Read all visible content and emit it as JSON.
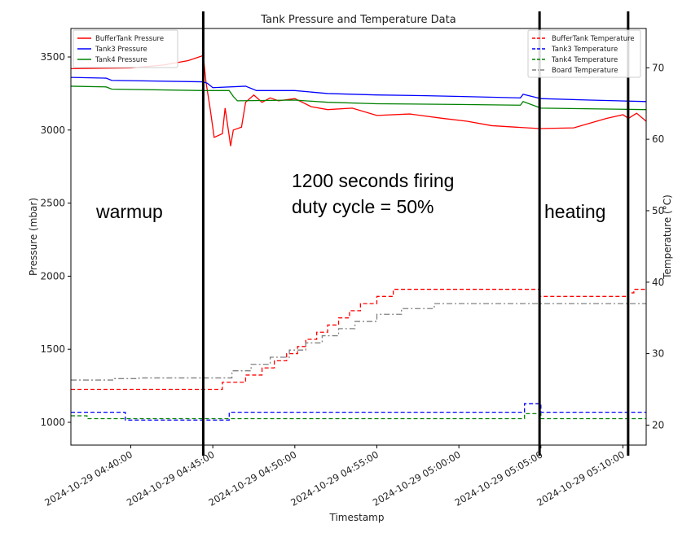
{
  "chart_data": {
    "type": "line",
    "title": "Tank Pressure and Temperature Data",
    "xlabel": "Timestamp",
    "ylabel_left": "Pressure (mbar)",
    "ylabel_right": "Temperature (°C)",
    "date": "2024-10-29",
    "xlim": [
      "04:36:21",
      "05:11:25"
    ],
    "ylim_left": [
      844,
      3695
    ],
    "ylim_right": [
      17.2,
      75.5
    ],
    "x_ticks": [
      "2024-10-29 04:40:00",
      "2024-10-29 04:45:00",
      "2024-10-29 04:50:00",
      "2024-10-29 04:55:00",
      "2024-10-29 05:00:00",
      "2024-10-29 05:05:00",
      "2024-10-29 05:10:00"
    ],
    "y_ticks_left": [
      1000,
      1500,
      2000,
      2500,
      3000,
      3500
    ],
    "y_ticks_right": [
      20,
      30,
      40,
      50,
      60,
      70
    ],
    "grid": false,
    "legend_left": "top-left",
    "legend_right": "top-right",
    "pressure_series": [
      {
        "name": "BufferTank Pressure",
        "color": "#ff0000",
        "style": "solid",
        "points": [
          [
            "04:36:21",
            3420
          ],
          [
            "04:40:00",
            3425
          ],
          [
            "04:42:00",
            3445
          ],
          [
            "04:43:30",
            3475
          ],
          [
            "04:44:25",
            3510
          ],
          [
            "04:44:35",
            3330
          ],
          [
            "04:44:50",
            3150
          ],
          [
            "04:45:05",
            2950
          ],
          [
            "04:45:35",
            2975
          ],
          [
            "04:45:45",
            3150
          ],
          [
            "04:46:00",
            2960
          ],
          [
            "04:46:05",
            2890
          ],
          [
            "04:46:15",
            3000
          ],
          [
            "04:46:45",
            3020
          ],
          [
            "04:47:00",
            3190
          ],
          [
            "04:47:30",
            3240
          ],
          [
            "04:48:00",
            3190
          ],
          [
            "04:48:30",
            3220
          ],
          [
            "04:49:00",
            3200
          ],
          [
            "04:50:00",
            3215
          ],
          [
            "04:51:00",
            3160
          ],
          [
            "04:52:00",
            3140
          ],
          [
            "04:53:30",
            3150
          ],
          [
            "04:55:00",
            3100
          ],
          [
            "04:57:00",
            3110
          ],
          [
            "04:59:00",
            3080
          ],
          [
            "05:00:30",
            3060
          ],
          [
            "05:02:00",
            3030
          ],
          [
            "05:04:55",
            3010
          ],
          [
            "05:07:00",
            3015
          ],
          [
            "05:09:00",
            3080
          ],
          [
            "05:10:00",
            3105
          ],
          [
            "05:10:20",
            3080
          ],
          [
            "05:10:50",
            3115
          ],
          [
            "05:11:25",
            3060
          ]
        ]
      },
      {
        "name": "Tank3 Pressure",
        "color": "#0000ff",
        "style": "solid",
        "points": [
          [
            "04:36:21",
            3360
          ],
          [
            "04:38:30",
            3355
          ],
          [
            "04:38:50",
            3340
          ],
          [
            "04:44:25",
            3330
          ],
          [
            "04:44:40",
            3320
          ],
          [
            "04:45:00",
            3290
          ],
          [
            "04:47:00",
            3300
          ],
          [
            "04:47:40",
            3270
          ],
          [
            "04:50:00",
            3270
          ],
          [
            "04:52:00",
            3250
          ],
          [
            "04:55:00",
            3240
          ],
          [
            "04:58:00",
            3235
          ],
          [
            "05:00:00",
            3230
          ],
          [
            "05:03:45",
            3220
          ],
          [
            "05:03:55",
            3245
          ],
          [
            "05:05:00",
            3215
          ],
          [
            "05:08:00",
            3205
          ],
          [
            "05:11:25",
            3195
          ]
        ]
      },
      {
        "name": "Tank4 Pressure",
        "color": "#008000",
        "style": "solid",
        "points": [
          [
            "04:36:21",
            3300
          ],
          [
            "04:38:30",
            3295
          ],
          [
            "04:38:50",
            3280
          ],
          [
            "04:44:25",
            3270
          ],
          [
            "04:46:00",
            3270
          ],
          [
            "04:46:15",
            3230
          ],
          [
            "04:46:30",
            3200
          ],
          [
            "04:50:00",
            3205
          ],
          [
            "04:52:00",
            3190
          ],
          [
            "04:55:00",
            3180
          ],
          [
            "05:00:00",
            3175
          ],
          [
            "05:03:45",
            3170
          ],
          [
            "05:03:55",
            3195
          ],
          [
            "05:05:00",
            3150
          ],
          [
            "05:11:25",
            3140
          ]
        ]
      }
    ],
    "temperature_series": [
      {
        "name": "BufferTank Temperature",
        "color": "#ff0000",
        "style": "dashed",
        "points": [
          [
            "04:36:21",
            25.0
          ],
          [
            "04:45:35",
            26.0
          ],
          [
            "04:47:00",
            27.0
          ],
          [
            "04:48:00",
            28.0
          ],
          [
            "04:48:45",
            29.0
          ],
          [
            "04:49:30",
            30.0
          ],
          [
            "04:50:10",
            31.0
          ],
          [
            "04:50:40",
            32.0
          ],
          [
            "04:51:20",
            33.0
          ],
          [
            "04:52:00",
            34.0
          ],
          [
            "04:52:40",
            35.0
          ],
          [
            "04:53:20",
            36.0
          ],
          [
            "04:54:00",
            37.0
          ],
          [
            "04:55:00",
            38.0
          ],
          [
            "04:56:00",
            39.0
          ],
          [
            "05:04:55",
            38.0
          ],
          [
            "05:10:19",
            38.5
          ],
          [
            "05:10:40",
            39.0
          ],
          [
            "05:11:25",
            39.0
          ]
        ]
      },
      {
        "name": "Tank3 Temperature",
        "color": "#0000ff",
        "style": "dashed",
        "points": [
          [
            "04:36:21",
            21.8
          ],
          [
            "04:39:40",
            20.7
          ],
          [
            "04:46:00",
            21.8
          ],
          [
            "05:04:00",
            23.0
          ],
          [
            "05:05:00",
            21.8
          ],
          [
            "05:11:25",
            21.8
          ]
        ]
      },
      {
        "name": "Tank4 Temperature",
        "color": "#008000",
        "style": "dashed",
        "points": [
          [
            "04:36:21",
            21.3
          ],
          [
            "04:37:20",
            20.9
          ],
          [
            "05:04:00",
            21.6
          ],
          [
            "05:05:00",
            20.9
          ],
          [
            "05:11:25",
            20.9
          ]
        ]
      },
      {
        "name": "Board Temperature",
        "color": "#808080",
        "style": "dashdot",
        "points": [
          [
            "04:36:21",
            26.3
          ],
          [
            "04:39:00",
            26.5
          ],
          [
            "04:40:30",
            26.6
          ],
          [
            "04:46:10",
            27.6
          ],
          [
            "04:47:20",
            28.5
          ],
          [
            "04:48:30",
            29.5
          ],
          [
            "04:49:40",
            30.5
          ],
          [
            "04:50:40",
            31.5
          ],
          [
            "04:51:40",
            32.5
          ],
          [
            "04:52:40",
            33.5
          ],
          [
            "04:53:40",
            34.5
          ],
          [
            "04:55:00",
            35.5
          ],
          [
            "04:56:30",
            36.3
          ],
          [
            "04:58:30",
            37.0
          ],
          [
            "05:11:25",
            37.0
          ]
        ]
      }
    ],
    "annotations": {
      "warmup": "warmup",
      "firing_line1": "1200 seconds firing",
      "firing_line2": "duty cycle = 50%",
      "heating": "heating",
      "marker_times": [
        "04:44:25",
        "05:04:55",
        "05:10:19"
      ]
    }
  }
}
